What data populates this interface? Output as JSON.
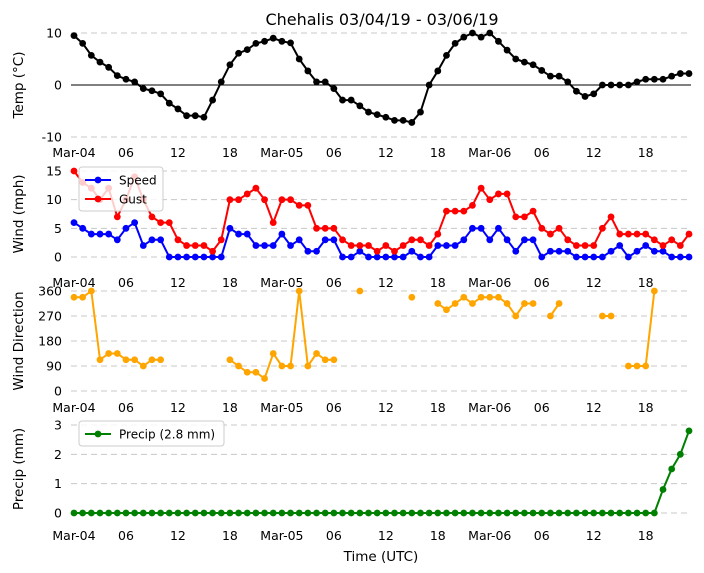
{
  "title": "Chehalis 03/04/19 - 03/06/19",
  "xlabel": "Time (UTC)",
  "x_tick_labels": [
    "Mar-04",
    "06",
    "12",
    "18",
    "Mar-05",
    "06",
    "12",
    "18",
    "Mar-06",
    "06",
    "12",
    "18"
  ],
  "x_tick_hours": [
    0,
    6,
    12,
    18,
    24,
    30,
    36,
    42,
    48,
    54,
    60,
    66
  ],
  "chart_data": [
    {
      "type": "line",
      "ylabel": "Temp (°C)",
      "ylim": [
        -10,
        10
      ],
      "yticks": [
        -10,
        0,
        10
      ],
      "zero_line": true,
      "legend": null,
      "series": [
        {
          "name": "Temp",
          "color": "#000000",
          "values": [
            9.5,
            8,
            5.7,
            4.4,
            3.4,
            1.8,
            1.1,
            0.6,
            -0.7,
            -1.1,
            -1.7,
            -3.5,
            -4.6,
            -5.9,
            -5.9,
            -6.2,
            -2.9,
            0.6,
            3.9,
            6.1,
            6.8,
            8,
            8.4,
            9,
            8.4,
            8.1,
            5,
            2.7,
            0.6,
            0.6,
            -0.7,
            -2.9,
            -2.9,
            -4,
            -5.2,
            -5.7,
            -6.2,
            -6.8,
            -6.8,
            -7.2,
            -5.2,
            0,
            2.7,
            5.7,
            8,
            9.2,
            10,
            9.2,
            10,
            8.4,
            6.7,
            5,
            4.4,
            3.9,
            2.8,
            1.7,
            1.7,
            0.6,
            -1.2,
            -2.2,
            -1.7,
            0,
            0,
            0,
            0,
            0.6,
            1.1,
            1.1,
            1.1,
            1.7,
            2.2,
            2.2
          ]
        }
      ]
    },
    {
      "type": "line",
      "ylabel": "Wind (mph)",
      "ylim": [
        0,
        15
      ],
      "yticks": [
        0,
        5,
        10,
        15
      ],
      "legend": "top-left",
      "series": [
        {
          "name": "Speed",
          "color": "#0000ff",
          "values": [
            6,
            5,
            4,
            4,
            4,
            3,
            5,
            6,
            2,
            3,
            3,
            0,
            0,
            0,
            0,
            0,
            0,
            0,
            5,
            4,
            4,
            2,
            2,
            2,
            4,
            2,
            3,
            1,
            1,
            3,
            3,
            0,
            0,
            1,
            0,
            0,
            0,
            0,
            0,
            1,
            0,
            0,
            2,
            2,
            2,
            3,
            5,
            5,
            3,
            5,
            3,
            1,
            3,
            3,
            0,
            1,
            1,
            1,
            0,
            0,
            0,
            0,
            1,
            2,
            0,
            1,
            2,
            1,
            1,
            0,
            0,
            0
          ]
        },
        {
          "name": "Gust",
          "color": "#ff0000",
          "values": [
            15,
            13,
            12,
            10,
            12,
            7,
            10,
            14,
            10,
            7,
            6,
            6,
            3,
            2,
            2,
            2,
            1,
            3,
            10,
            10,
            11,
            12,
            10,
            6,
            10,
            10,
            9,
            9,
            5,
            5,
            5,
            3,
            2,
            2,
            2,
            1,
            2,
            1,
            2,
            3,
            3,
            2,
            4,
            8,
            8,
            8,
            9,
            12,
            10,
            11,
            11,
            7,
            7,
            8,
            5,
            4,
            5,
            3,
            2,
            2,
            2,
            5,
            7,
            4,
            4,
            4,
            4,
            3,
            2,
            3,
            2,
            4
          ]
        }
      ]
    },
    {
      "type": "line",
      "ylabel": "Wind Direction",
      "ylim": [
        0,
        360
      ],
      "yticks": [
        0,
        90,
        180,
        270,
        360
      ],
      "legend": null,
      "series": [
        {
          "name": "Direction",
          "color": "#ffa500",
          "values": [
            337.5,
            337.5,
            360,
            112.5,
            135,
            135,
            112.5,
            112.5,
            90,
            112.5,
            112.5,
            null,
            null,
            null,
            null,
            null,
            null,
            null,
            112.5,
            90,
            67.5,
            67.5,
            45,
            135,
            90,
            90,
            360,
            90,
            135,
            112.5,
            112.5,
            null,
            null,
            360,
            null,
            null,
            null,
            null,
            null,
            337.5,
            null,
            null,
            315,
            292.5,
            315,
            337.5,
            315,
            337.5,
            337.5,
            337.5,
            315,
            270,
            315,
            315,
            null,
            270,
            315,
            null,
            null,
            null,
            null,
            270,
            270,
            null,
            90,
            90,
            90,
            360,
            null,
            null,
            null,
            null
          ]
        }
      ]
    },
    {
      "type": "line",
      "ylabel": "Precip (mm)",
      "ylim": [
        0,
        3
      ],
      "yticks": [
        0,
        1,
        2,
        3
      ],
      "legend": "top-left",
      "series": [
        {
          "name": "Precip (2.8 mm)",
          "color": "#008000",
          "values": [
            0,
            0,
            0,
            0,
            0,
            0,
            0,
            0,
            0,
            0,
            0,
            0,
            0,
            0,
            0,
            0,
            0,
            0,
            0,
            0,
            0,
            0,
            0,
            0,
            0,
            0,
            0,
            0,
            0,
            0,
            0,
            0,
            0,
            0,
            0,
            0,
            0,
            0,
            0,
            0,
            0,
            0,
            0,
            0,
            0,
            0,
            0,
            0,
            0,
            0,
            0,
            0,
            0,
            0,
            0,
            0,
            0,
            0,
            0,
            0,
            0,
            0,
            0,
            0,
            0,
            0,
            0,
            0,
            0.8,
            1.5,
            2.0,
            2.8
          ]
        }
      ]
    }
  ]
}
